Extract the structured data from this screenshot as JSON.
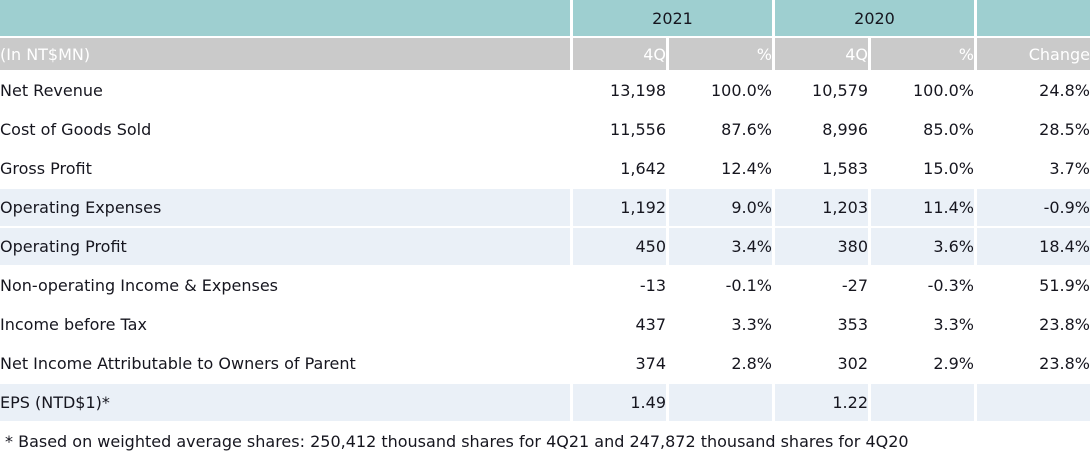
{
  "table": {
    "unit_label": "(In NT$MN)",
    "col_groups": {
      "y2021": "2021",
      "y2020": "2020"
    },
    "sub_headers": {
      "q": "4Q",
      "pct": "%",
      "change": "Change"
    },
    "rows": [
      {
        "label": "Net Revenue",
        "q1": "13,198",
        "p1": "100.0%",
        "q2": "10,579",
        "p2": "100.0%",
        "change": "24.8%"
      },
      {
        "label": "Cost of Goods Sold",
        "q1": "11,556",
        "p1": "87.6%",
        "q2": "8,996",
        "p2": "85.0%",
        "change": "28.5%"
      },
      {
        "label": "Gross Profit",
        "q1": "1,642",
        "p1": "12.4%",
        "q2": "1,583",
        "p2": "15.0%",
        "change": "3.7%"
      },
      {
        "label": "Operating Expenses",
        "q1": "1,192",
        "p1": "9.0%",
        "q2": "1,203",
        "p2": "11.4%",
        "change": "-0.9%"
      },
      {
        "label": "Operating Profit",
        "q1": "450",
        "p1": "3.4%",
        "q2": "380",
        "p2": "3.6%",
        "change": "18.4%"
      },
      {
        "label": "Non-operating Income & Expenses",
        "q1": "-13",
        "p1": "-0.1%",
        "q2": "-27",
        "p2": "-0.3%",
        "change": "51.9%"
      },
      {
        "label": "Income before Tax",
        "q1": "437",
        "p1": "3.3%",
        "q2": "353",
        "p2": "3.3%",
        "change": "23.8%"
      },
      {
        "label": "Net Income Attributable to Owners of Parent",
        "q1": "374",
        "p1": "2.8%",
        "q2": "302",
        "p2": "2.9%",
        "change": "23.8%"
      },
      {
        "label": "EPS (NTD$1)*",
        "q1": "1.49",
        "p1": "",
        "q2": "1.22",
        "p2": "",
        "change": ""
      }
    ],
    "footnote": "* Based on weighted average shares: 250,412 thousand shares for 4Q21 and 247,872 thousand shares for 4Q20"
  },
  "colors": {
    "header_teal": "#9ecfd0",
    "subheader_gray": "#cacaca",
    "shaded_row": "#eaf0f7",
    "text": "#16161f",
    "subheader_text": "#ffffff"
  }
}
